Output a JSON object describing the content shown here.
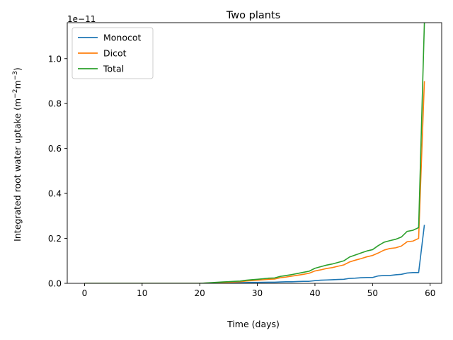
{
  "chart_data": {
    "type": "line",
    "title": "Two plants",
    "xlabel": "Time (days)",
    "ylabel_parts": [
      "Integrated root water uptake (m",
      "−2",
      "m",
      "−3",
      ")"
    ],
    "y_offset_base": "1e−11",
    "y_scale_exponent": -11,
    "xlim": [
      -3,
      62
    ],
    "ylim": [
      0,
      1.16
    ],
    "xticks": [
      0,
      10,
      20,
      30,
      40,
      50,
      60
    ],
    "xtick_labels": [
      "0",
      "10",
      "20",
      "30",
      "40",
      "50",
      "60"
    ],
    "yticks": [
      0,
      0.2,
      0.4,
      0.6,
      0.8,
      1.0
    ],
    "ytick_labels": [
      "0.0",
      "0.2",
      "0.4",
      "0.6",
      "0.8",
      "1.0"
    ],
    "grid": false,
    "legend_position": "top-left",
    "x": [
      0,
      1,
      2,
      3,
      4,
      5,
      6,
      7,
      8,
      9,
      10,
      11,
      12,
      13,
      14,
      15,
      16,
      17,
      18,
      19,
      20,
      21,
      22,
      23,
      24,
      25,
      26,
      27,
      28,
      29,
      30,
      31,
      32,
      33,
      34,
      35,
      36,
      37,
      38,
      39,
      40,
      41,
      42,
      43,
      44,
      45,
      46,
      47,
      48,
      49,
      50,
      51,
      52,
      53,
      54,
      55,
      56,
      57,
      58,
      59
    ],
    "series": [
      {
        "name": "Monocot",
        "color": "#1f77b4",
        "values": [
          0,
          0,
          0,
          0,
          0,
          0,
          0,
          0,
          0,
          0,
          0,
          0,
          0,
          0,
          0,
          0,
          0,
          0,
          0,
          0,
          0,
          0.0005,
          0.001,
          0.0015,
          0.002,
          0.0025,
          0.003,
          0.003,
          0.0035,
          0.004,
          0.004,
          0.0045,
          0.005,
          0.005,
          0.006,
          0.007,
          0.007,
          0.008,
          0.009,
          0.009,
          0.012,
          0.014,
          0.015,
          0.016,
          0.017,
          0.018,
          0.022,
          0.023,
          0.025,
          0.026,
          0.026,
          0.033,
          0.035,
          0.035,
          0.038,
          0.04,
          0.046,
          0.048,
          0.048,
          0.26
        ]
      },
      {
        "name": "Dicot",
        "color": "#ff7f0e",
        "values": [
          0,
          0,
          0,
          0,
          0,
          0,
          0,
          0,
          0,
          0,
          0,
          0,
          0,
          0,
          0,
          0,
          0,
          0,
          0,
          0,
          0,
          0.001,
          0.002,
          0.003,
          0.004,
          0.005,
          0.006,
          0.007,
          0.01,
          0.012,
          0.014,
          0.016,
          0.018,
          0.019,
          0.025,
          0.028,
          0.032,
          0.036,
          0.04,
          0.045,
          0.055,
          0.06,
          0.066,
          0.07,
          0.076,
          0.082,
          0.095,
          0.103,
          0.11,
          0.118,
          0.124,
          0.135,
          0.148,
          0.155,
          0.158,
          0.166,
          0.185,
          0.188,
          0.2,
          0.9
        ]
      },
      {
        "name": "Total",
        "color": "#2ca02c",
        "values": [
          0,
          0,
          0,
          0,
          0,
          0,
          0,
          0,
          0,
          0,
          0,
          0,
          0,
          0,
          0,
          0,
          0,
          0,
          0,
          0,
          0,
          0.0015,
          0.003,
          0.0045,
          0.006,
          0.0075,
          0.009,
          0.01,
          0.0135,
          0.016,
          0.018,
          0.0205,
          0.023,
          0.024,
          0.031,
          0.035,
          0.039,
          0.044,
          0.049,
          0.054,
          0.067,
          0.074,
          0.081,
          0.086,
          0.093,
          0.1,
          0.117,
          0.126,
          0.135,
          0.144,
          0.15,
          0.168,
          0.183,
          0.19,
          0.196,
          0.206,
          0.231,
          0.236,
          0.248,
          1.16
        ]
      }
    ]
  }
}
